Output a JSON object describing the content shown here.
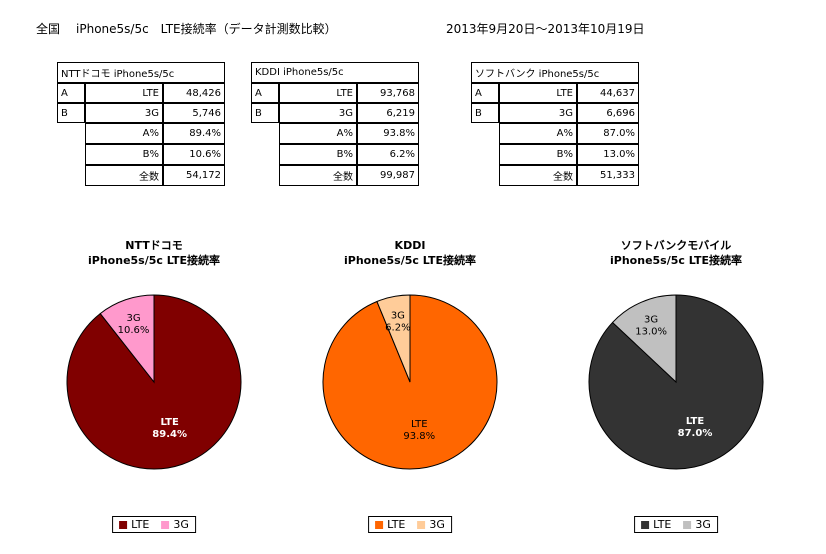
{
  "header": {
    "region": "全国",
    "title": "iPhone5s/5c　LTE接続率（データ計測数比較）",
    "period": "2013年9月20日～2013年10月19日"
  },
  "tables": [
    {
      "title": "NTTドコモ iPhone5s/5c",
      "rows": [
        {
          "key": "A",
          "label": "LTE",
          "value": "48,426"
        },
        {
          "key": "B",
          "label": "3G",
          "value": "5,746"
        },
        {
          "key": "",
          "label": "A%",
          "value": "89.4%"
        },
        {
          "key": "",
          "label": "B%",
          "value": "10.6%"
        },
        {
          "key": "",
          "label": "全数",
          "value": "54,172"
        }
      ]
    },
    {
      "title": "KDDI iPhone5s/5c",
      "rows": [
        {
          "key": "A",
          "label": "LTE",
          "value": "93,768"
        },
        {
          "key": "B",
          "label": "3G",
          "value": "6,219"
        },
        {
          "key": "",
          "label": "A%",
          "value": "93.8%"
        },
        {
          "key": "",
          "label": "B%",
          "value": "6.2%"
        },
        {
          "key": "",
          "label": "全数",
          "value": "99,987"
        }
      ]
    },
    {
      "title": "ソフトバンク iPhone5s/5c",
      "rows": [
        {
          "key": "A",
          "label": "LTE",
          "value": "44,637"
        },
        {
          "key": "B",
          "label": "3G",
          "value": "6,696"
        },
        {
          "key": "",
          "label": "A%",
          "value": "87.0%"
        },
        {
          "key": "",
          "label": "B%",
          "value": "13.0%"
        },
        {
          "key": "",
          "label": "全数",
          "value": "51,333"
        }
      ]
    }
  ],
  "chart_data": [
    {
      "type": "pie",
      "title": "NTTドコモ",
      "subtitle": "iPhone5s/5c LTE接続率",
      "legend_position": "bottom",
      "slices": [
        {
          "name": "LTE",
          "label": "LTE",
          "value_label": "89.4%",
          "value": 89.4,
          "color": "#800000",
          "text_color": "#ffffff"
        },
        {
          "name": "3G",
          "label": "3G",
          "value_label": "10.6%",
          "value": 10.6,
          "color": "#ff99cc",
          "text_color": "#000000"
        }
      ]
    },
    {
      "type": "pie",
      "title": "KDDI",
      "subtitle": "iPhone5s/5c LTE接続率",
      "legend_position": "bottom",
      "slices": [
        {
          "name": "LTE",
          "label": "LTE",
          "value_label": "93.8%",
          "value": 93.8,
          "color": "#ff6600",
          "text_color": "#000000"
        },
        {
          "name": "3G",
          "label": "3G",
          "value_label": "6.2%",
          "value": 6.2,
          "color": "#ffcc99",
          "text_color": "#000000"
        }
      ]
    },
    {
      "type": "pie",
      "title": "ソフトバンクモバイル",
      "subtitle": "iPhone5s/5c LTE接続率",
      "legend_position": "bottom",
      "slices": [
        {
          "name": "LTE",
          "label": "LTE",
          "value_label": "87.0%",
          "value": 87.0,
          "color": "#333333",
          "text_color": "#ffffff"
        },
        {
          "name": "3G",
          "label": "3G",
          "value_label": "13.0%",
          "value": 13.0,
          "color": "#c0c0c0",
          "text_color": "#000000"
        }
      ]
    }
  ]
}
